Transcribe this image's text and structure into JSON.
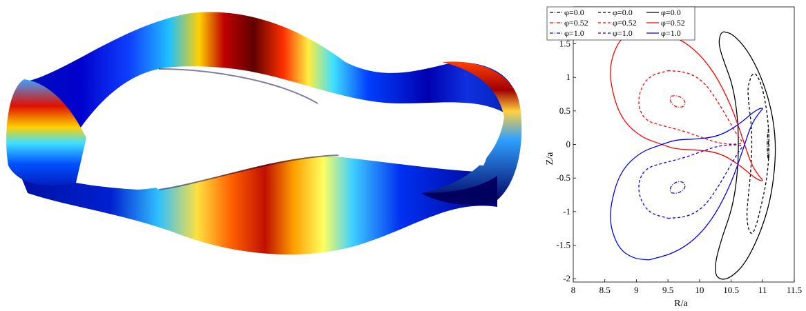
{
  "figure_left": {
    "description": "3D plasma boundary surface rendered with a jet colormap",
    "colormap": [
      "#00007f",
      "#0000ff",
      "#00a0ff",
      "#00ffff",
      "#80ff80",
      "#ffff00",
      "#ff8000",
      "#ff0000",
      "#7f0000"
    ]
  },
  "chart_data": {
    "type": "line",
    "title": "",
    "xlabel": "R/a",
    "ylabel": "Z/a",
    "xlim": [
      8,
      11.5
    ],
    "ylim": [
      -2.05,
      2.05
    ],
    "xticks": [
      8,
      8.5,
      9,
      9.5,
      10,
      10.5,
      11,
      11.5
    ],
    "xtick_labels": [
      "8",
      "8.5",
      "9",
      "9.5",
      "10",
      "10.5",
      "11",
      "11.5"
    ],
    "yticks": [
      -2,
      -1.5,
      -1,
      -0.5,
      0,
      0.5,
      1,
      1.5
    ],
    "ytick_labels": [
      "-2",
      "-1.5",
      "-1",
      "-0.5",
      "0",
      "0.5",
      "1",
      "1.5"
    ],
    "grid": false,
    "legend_placement": "top-left outside",
    "legend": [
      [
        "φ=0.0",
        "φ=0.0",
        "φ=0.0"
      ],
      [
        "φ=0.52",
        "φ=0.52",
        "φ=0.52"
      ],
      [
        "φ=1.0",
        "φ=1.0",
        "φ=1.0"
      ]
    ],
    "series": [
      {
        "group": "phi0",
        "style": "dashdot",
        "color": "#000000",
        "points": [
          [
            11.09,
            0.0
          ],
          [
            11.1,
            0.17
          ],
          [
            11.09,
            0.25
          ],
          [
            11.08,
            0.17
          ],
          [
            11.07,
            0.0
          ],
          [
            11.08,
            -0.17
          ],
          [
            11.09,
            -0.25
          ],
          [
            11.1,
            -0.17
          ],
          [
            11.09,
            0.0
          ]
        ]
      },
      {
        "group": "phi0",
        "style": "dashed",
        "color": "#000000",
        "points": [
          [
            10.82,
            1.02
          ],
          [
            10.88,
            1.08
          ],
          [
            10.98,
            0.9
          ],
          [
            11.06,
            0.55
          ],
          [
            11.1,
            0.18
          ],
          [
            11.1,
            -0.18
          ],
          [
            11.06,
            -0.55
          ],
          [
            10.98,
            -0.9
          ],
          [
            10.88,
            -1.28
          ],
          [
            10.8,
            -1.35
          ],
          [
            10.74,
            -1.1
          ],
          [
            10.78,
            -0.7
          ],
          [
            10.82,
            -0.3
          ],
          [
            10.83,
            0.0
          ],
          [
            10.82,
            0.3
          ],
          [
            10.78,
            0.6
          ],
          [
            10.76,
            0.85
          ],
          [
            10.82,
            1.02
          ]
        ]
      },
      {
        "group": "phi0",
        "style": "solid",
        "color": "#000000",
        "points": [
          [
            10.38,
            1.68
          ],
          [
            10.52,
            1.65
          ],
          [
            10.75,
            1.42
          ],
          [
            10.96,
            1.05
          ],
          [
            11.12,
            0.6
          ],
          [
            11.2,
            0.15
          ],
          [
            11.2,
            -0.3
          ],
          [
            11.12,
            -0.85
          ],
          [
            10.95,
            -1.35
          ],
          [
            10.72,
            -1.78
          ],
          [
            10.5,
            -1.98
          ],
          [
            10.35,
            -2.02
          ],
          [
            10.25,
            -1.95
          ],
          [
            10.25,
            -1.75
          ],
          [
            10.35,
            -1.4
          ],
          [
            10.52,
            -0.95
          ],
          [
            10.6,
            -0.45
          ],
          [
            10.62,
            0.0
          ],
          [
            10.6,
            0.45
          ],
          [
            10.52,
            0.9
          ],
          [
            10.38,
            1.25
          ],
          [
            10.3,
            1.5
          ],
          [
            10.33,
            1.65
          ],
          [
            10.38,
            1.68
          ]
        ]
      },
      {
        "group": "phi052",
        "style": "dashdot",
        "color": "#ff0000",
        "points": [
          [
            9.55,
            0.72
          ],
          [
            9.65,
            0.73
          ],
          [
            9.75,
            0.68
          ],
          [
            9.78,
            0.6
          ],
          [
            9.72,
            0.55
          ],
          [
            9.62,
            0.56
          ],
          [
            9.55,
            0.62
          ],
          [
            9.53,
            0.68
          ],
          [
            9.55,
            0.72
          ]
        ]
      },
      {
        "group": "phi052",
        "style": "dashed",
        "color": "#ff0000",
        "points": [
          [
            9.5,
            1.1
          ],
          [
            9.8,
            1.08
          ],
          [
            10.05,
            0.95
          ],
          [
            10.25,
            0.7
          ],
          [
            10.45,
            0.38
          ],
          [
            10.62,
            0.1
          ],
          [
            10.7,
            0.02
          ],
          [
            10.55,
            0.0
          ],
          [
            10.3,
            0.02
          ],
          [
            10.05,
            0.1
          ],
          [
            9.75,
            0.2
          ],
          [
            9.45,
            0.27
          ],
          [
            9.15,
            0.35
          ],
          [
            9.03,
            0.55
          ],
          [
            9.05,
            0.8
          ],
          [
            9.2,
            1.02
          ],
          [
            9.5,
            1.1
          ]
        ]
      },
      {
        "group": "phi052",
        "style": "solid",
        "color": "#ff0000",
        "points": [
          [
            9.2,
            1.72
          ],
          [
            9.6,
            1.62
          ],
          [
            9.95,
            1.4
          ],
          [
            10.25,
            1.05
          ],
          [
            10.5,
            0.58
          ],
          [
            10.68,
            0.1
          ],
          [
            10.82,
            -0.3
          ],
          [
            10.95,
            -0.48
          ],
          [
            11.02,
            -0.55
          ],
          [
            10.9,
            -0.52
          ],
          [
            10.6,
            -0.28
          ],
          [
            10.3,
            -0.12
          ],
          [
            9.95,
            -0.08
          ],
          [
            9.62,
            -0.07
          ],
          [
            9.4,
            0.0
          ],
          [
            9.05,
            0.12
          ],
          [
            8.75,
            0.4
          ],
          [
            8.6,
            0.85
          ],
          [
            8.58,
            1.2
          ],
          [
            8.72,
            1.55
          ],
          [
            8.95,
            1.7
          ],
          [
            9.2,
            1.72
          ]
        ]
      },
      {
        "group": "phi10",
        "style": "dashdot",
        "color": "#0000ff",
        "points": [
          [
            9.55,
            -0.72
          ],
          [
            9.65,
            -0.73
          ],
          [
            9.75,
            -0.68
          ],
          [
            9.78,
            -0.6
          ],
          [
            9.72,
            -0.55
          ],
          [
            9.62,
            -0.56
          ],
          [
            9.55,
            -0.62
          ],
          [
            9.53,
            -0.68
          ],
          [
            9.55,
            -0.72
          ]
        ]
      },
      {
        "group": "phi10",
        "style": "dashed",
        "color": "#0000ff",
        "points": [
          [
            9.5,
            -1.1
          ],
          [
            9.8,
            -1.08
          ],
          [
            10.05,
            -0.95
          ],
          [
            10.25,
            -0.7
          ],
          [
            10.45,
            -0.38
          ],
          [
            10.62,
            -0.1
          ],
          [
            10.7,
            -0.02
          ],
          [
            10.55,
            0.0
          ],
          [
            10.3,
            -0.02
          ],
          [
            10.05,
            -0.1
          ],
          [
            9.75,
            -0.2
          ],
          [
            9.45,
            -0.27
          ],
          [
            9.15,
            -0.35
          ],
          [
            9.03,
            -0.55
          ],
          [
            9.05,
            -0.8
          ],
          [
            9.2,
            -1.02
          ],
          [
            9.5,
            -1.1
          ]
        ]
      },
      {
        "group": "phi10",
        "style": "solid",
        "color": "#0000ff",
        "points": [
          [
            9.2,
            -1.72
          ],
          [
            9.6,
            -1.62
          ],
          [
            9.95,
            -1.4
          ],
          [
            10.25,
            -1.05
          ],
          [
            10.5,
            -0.58
          ],
          [
            10.68,
            -0.1
          ],
          [
            10.82,
            0.3
          ],
          [
            10.95,
            0.48
          ],
          [
            11.02,
            0.55
          ],
          [
            10.9,
            0.52
          ],
          [
            10.6,
            0.28
          ],
          [
            10.3,
            0.12
          ],
          [
            9.95,
            0.08
          ],
          [
            9.62,
            0.07
          ],
          [
            9.4,
            0.0
          ],
          [
            9.05,
            -0.12
          ],
          [
            8.75,
            -0.4
          ],
          [
            8.6,
            -0.85
          ],
          [
            8.58,
            -1.2
          ],
          [
            8.72,
            -1.55
          ],
          [
            8.95,
            -1.7
          ],
          [
            9.2,
            -1.72
          ]
        ]
      }
    ]
  }
}
